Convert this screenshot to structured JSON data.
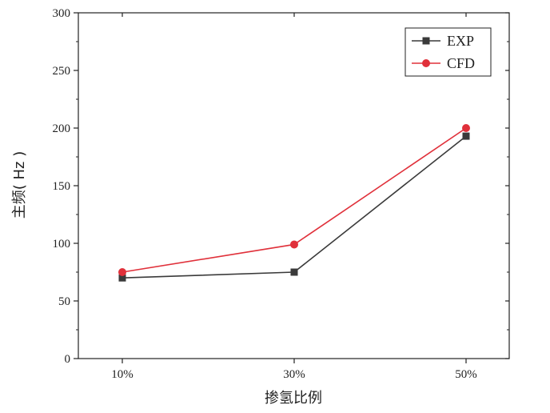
{
  "chart_data": {
    "type": "line",
    "categories": [
      "10%",
      "30%",
      "50%"
    ],
    "series": [
      {
        "name": "EXP",
        "values": [
          70,
          75,
          193
        ],
        "color": "#3a3a3a",
        "marker": "square"
      },
      {
        "name": "CFD",
        "values": [
          75,
          99,
          200
        ],
        "color": "#e0303a",
        "marker": "circle"
      }
    ],
    "xlabel": "掺氢比例",
    "ylabel": "主频( Hz )",
    "ylim": [
      0,
      300
    ],
    "yticks": [
      0,
      50,
      100,
      150,
      200,
      250,
      300
    ],
    "grid": false,
    "legend_position": "top-right"
  }
}
